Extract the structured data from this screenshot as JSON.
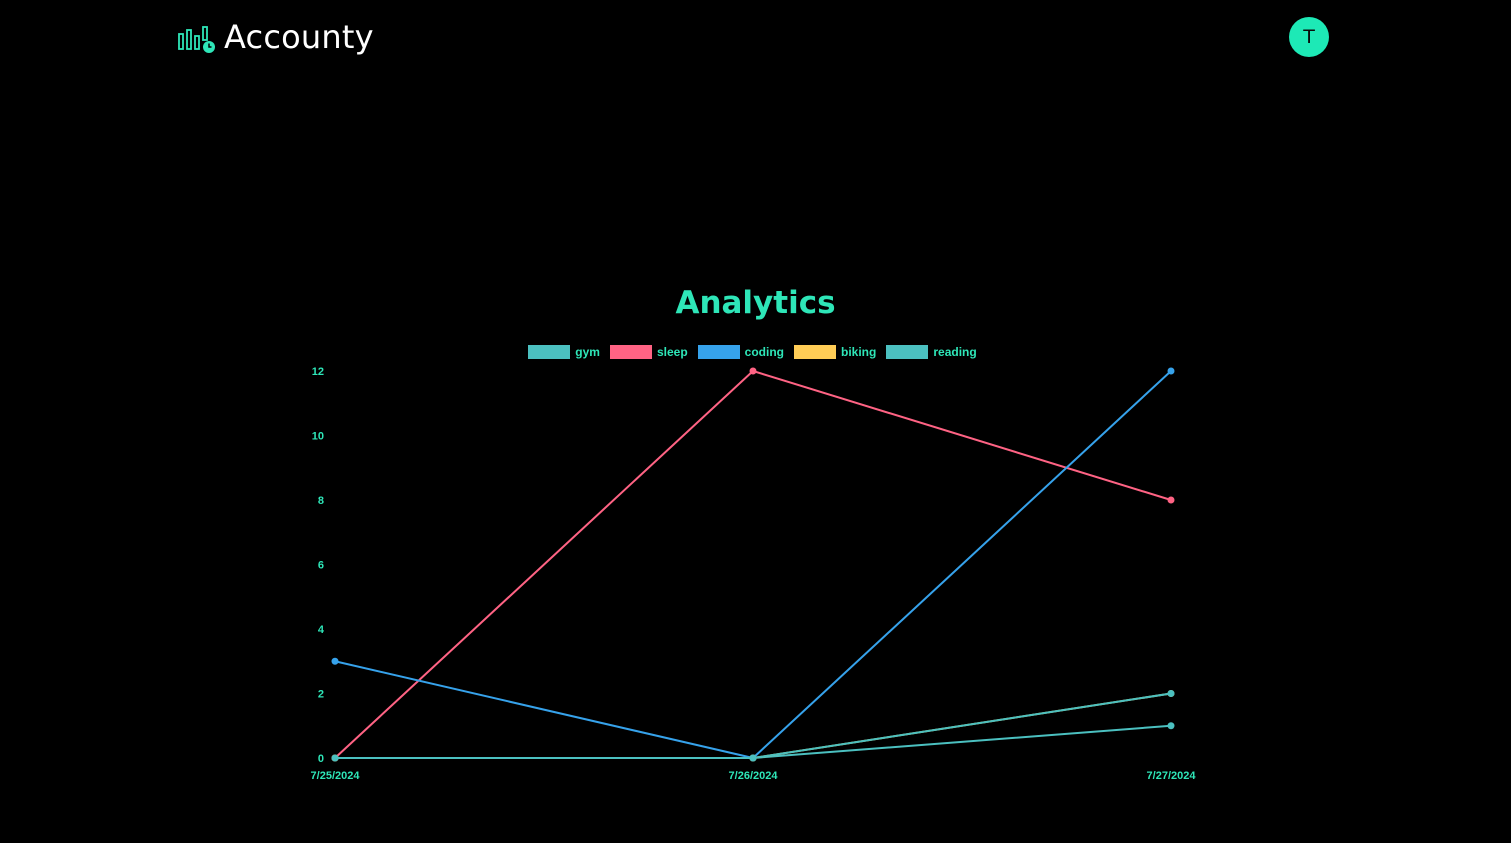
{
  "app": {
    "brand_name": "Accounty",
    "brand_icon": "bar-chart-clock-icon",
    "avatar_initial": "T",
    "accent_color": "#1de9b6"
  },
  "page": {
    "title": "Analytics"
  },
  "chart_data": {
    "type": "line",
    "title": "",
    "xlabel": "",
    "ylabel": "",
    "x": [
      "7/25/2024",
      "7/26/2024",
      "7/27/2024"
    ],
    "ylim": [
      0,
      12
    ],
    "yticks": [
      0,
      2,
      4,
      6,
      8,
      10,
      12
    ],
    "grid": false,
    "legend_position": "top-center",
    "series": [
      {
        "name": "gym",
        "color": "#4bc0c0",
        "values": [
          0,
          0,
          1
        ]
      },
      {
        "name": "sleep",
        "color": "#ff6384",
        "values": [
          0,
          12,
          8
        ]
      },
      {
        "name": "coding",
        "color": "#36a2eb",
        "values": [
          3,
          0,
          12
        ]
      },
      {
        "name": "biking",
        "color": "#ffcd56",
        "values": [
          0,
          0,
          2
        ]
      },
      {
        "name": "reading",
        "color": "#4bc0c0",
        "values": [
          0,
          0,
          2
        ]
      }
    ]
  }
}
